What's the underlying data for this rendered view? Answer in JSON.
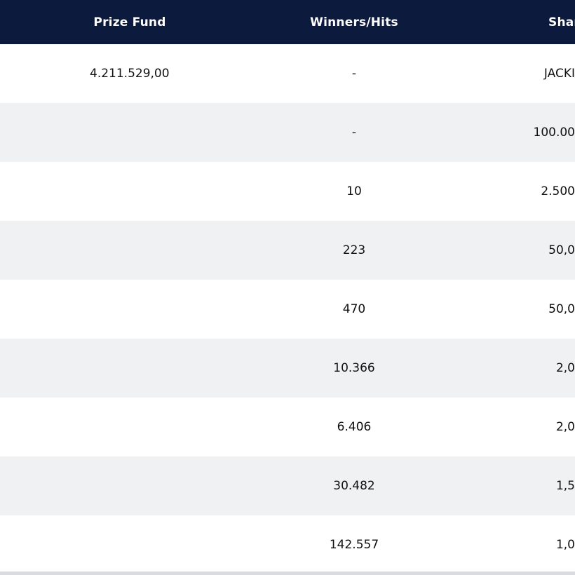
{
  "table": {
    "headers": {
      "prize_fund": "Prize Fund",
      "winners_hits": "Winners/Hits",
      "share": "Shar"
    },
    "rows": [
      {
        "prize_fund": "4.211.529,00",
        "winners": "-",
        "share": "JACKI"
      },
      {
        "prize_fund": "",
        "winners": "-",
        "share": "100.00"
      },
      {
        "prize_fund": "",
        "winners": "10",
        "share": "2.500"
      },
      {
        "prize_fund": "",
        "winners": "223",
        "share": "50,0"
      },
      {
        "prize_fund": "",
        "winners": "470",
        "share": "50,0"
      },
      {
        "prize_fund": "",
        "winners": "10.366",
        "share": "2,0"
      },
      {
        "prize_fund": "",
        "winners": "6.406",
        "share": "2,0"
      },
      {
        "prize_fund": "",
        "winners": "30.482",
        "share": "1,5"
      },
      {
        "prize_fund": "",
        "winners": "142.557",
        "share": "1,0"
      }
    ]
  },
  "colors": {
    "header_bg": "#0c1a3d",
    "row_alt_bg": "#f0f1f3"
  }
}
